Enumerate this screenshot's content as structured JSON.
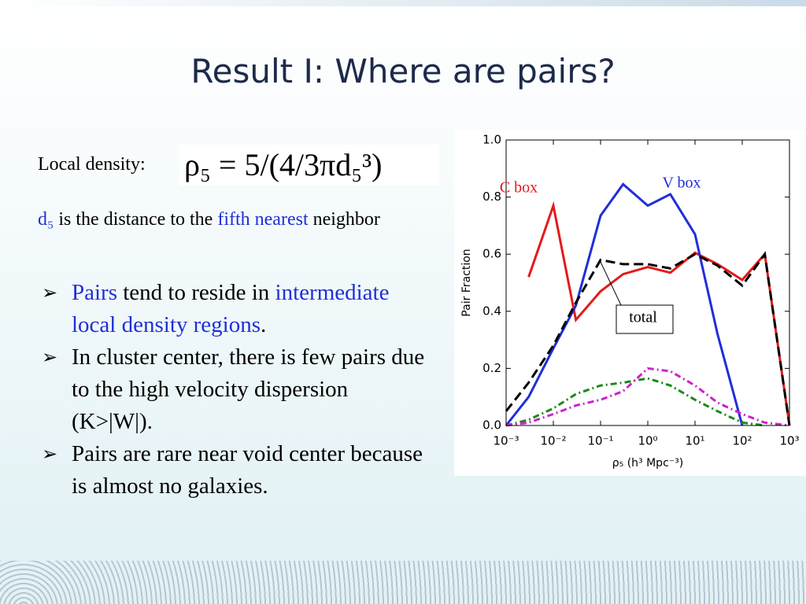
{
  "slide": {
    "title": "Result I: Where are pairs?",
    "density_label": "Local density:",
    "formula": "ρ₅ = 5/(4/3πd₅³)",
    "definition": [
      "d₅",
      " is the distance to the ",
      "fifth nearest",
      " neighbor"
    ],
    "bullets": [
      [
        "Pairs",
        " tend to reside in ",
        "intermediate local density regions",
        "."
      ],
      [
        "In cluster center, there is few pairs due to the high velocity dispersion (K>|W|)."
      ],
      [
        "Pairs are rare near void center because is almost no galaxies."
      ]
    ]
  },
  "chart_data": {
    "type": "line",
    "xlabel": "ρ₅  (h³  Mpc⁻³)",
    "ylabel": "Pair Fraction",
    "xscale": "log",
    "x": [
      0.001,
      0.003,
      0.01,
      0.03,
      0.1,
      0.3,
      1,
      3,
      10,
      30,
      100,
      300,
      1000
    ],
    "xlim": [
      0.001,
      1000
    ],
    "xticks": [
      {
        "value": 0.001,
        "label": "10⁻³"
      },
      {
        "value": 0.01,
        "label": "10⁻²"
      },
      {
        "value": 0.1,
        "label": "10⁻¹"
      },
      {
        "value": 1,
        "label": "10⁰"
      },
      {
        "value": 10,
        "label": "10¹"
      },
      {
        "value": 100,
        "label": "10²"
      },
      {
        "value": 1000,
        "label": "10³"
      }
    ],
    "ylim": [
      0,
      1
    ],
    "yticks": [
      {
        "value": 0,
        "label": "0.0"
      },
      0.2,
      0.4,
      0.6,
      0.8,
      {
        "value": 1,
        "label": "1.0"
      }
    ],
    "series": [
      {
        "name": "C box",
        "color": "#e41a1c",
        "style": "solid",
        "values": [
          null,
          0.52,
          0.77,
          0.37,
          0.47,
          0.53,
          0.555,
          0.535,
          0.605,
          0.565,
          0.51,
          0.6,
          0.0
        ]
      },
      {
        "name": "V box",
        "color": "#1f2fd8",
        "style": "solid",
        "values": [
          0.0,
          0.1,
          0.27,
          0.42,
          0.735,
          0.845,
          0.77,
          0.81,
          0.67,
          0.32,
          0.0,
          null,
          null
        ]
      },
      {
        "name": "total",
        "color": "#000000",
        "style": "dashed",
        "values": [
          0.05,
          0.15,
          0.28,
          0.43,
          0.58,
          0.565,
          0.565,
          0.55,
          0.6,
          0.56,
          0.49,
          0.6,
          0.0
        ]
      },
      {
        "color": "#1a8a1a",
        "style": "dashdot",
        "values": [
          0.0,
          0.02,
          0.06,
          0.11,
          0.14,
          0.15,
          0.165,
          0.14,
          0.09,
          0.05,
          0.01,
          0.0,
          null
        ]
      },
      {
        "color": "#cc22cc",
        "style": "dashdot",
        "values": [
          0.0,
          0.01,
          0.04,
          0.07,
          0.09,
          0.12,
          0.2,
          0.19,
          0.14,
          0.08,
          0.04,
          0.01,
          0.0
        ]
      }
    ]
  }
}
